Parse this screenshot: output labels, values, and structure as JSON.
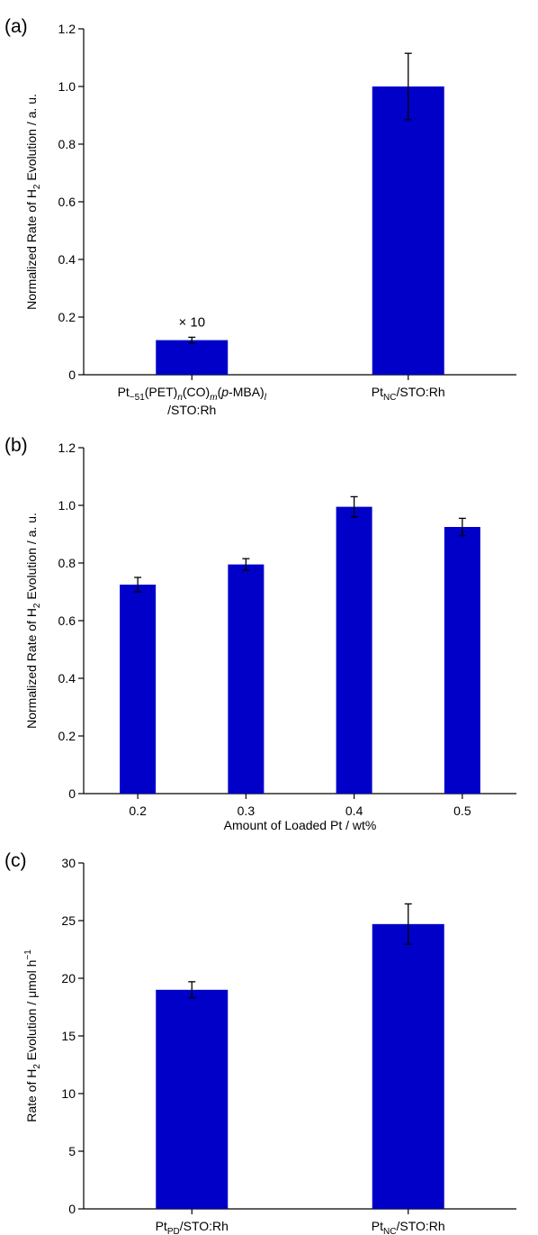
{
  "colors": {
    "bar": "#0000c8",
    "axis": "#000000",
    "text": "#000000",
    "background": "#ffffff"
  },
  "chart_data": [
    {
      "panel": "(a)",
      "type": "bar",
      "categories": [
        {
          "label_line1": [
            [
              "Pt",
              ""
            ],
            [
              "~51",
              "sub"
            ],
            [
              "(PET)",
              ""
            ],
            [
              "n",
              "subi"
            ],
            [
              "(CO)",
              ""
            ],
            [
              "m",
              "subi"
            ],
            [
              "(",
              ""
            ],
            [
              "p",
              "i"
            ],
            [
              "-MBA)",
              ""
            ],
            [
              "l",
              "subi"
            ]
          ],
          "label_line2": "/STO:Rh"
        },
        {
          "label_line1": [
            [
              "Pt",
              ""
            ],
            [
              "NC",
              "sub"
            ],
            [
              "/STO:Rh",
              ""
            ]
          ]
        }
      ],
      "values": [
        0.12,
        1.0
      ],
      "errors": [
        0.01,
        0.115
      ],
      "annotations": [
        {
          "category": 0,
          "text": "× 10"
        }
      ],
      "ylabel": [
        [
          "Normalized Rate of H",
          ""
        ],
        [
          "2",
          "sub"
        ],
        [
          " Evolution / a. u.",
          ""
        ]
      ],
      "xlabel": "",
      "ylim": [
        0,
        1.2
      ],
      "yticks": [
        0,
        0.2,
        0.4,
        0.6,
        0.8,
        1.0,
        1.2
      ],
      "ytick_labels": [
        "0",
        "0.2",
        "0.4",
        "0.6",
        "0.8",
        "1.0",
        "1.2"
      ],
      "grid": false
    },
    {
      "panel": "(b)",
      "type": "bar",
      "categories": [
        {
          "label_line1": [
            [
              "0.2",
              ""
            ]
          ]
        },
        {
          "label_line1": [
            [
              "0.3",
              ""
            ]
          ]
        },
        {
          "label_line1": [
            [
              "0.4",
              ""
            ]
          ]
        },
        {
          "label_line1": [
            [
              "0.5",
              ""
            ]
          ]
        }
      ],
      "values": [
        0.725,
        0.795,
        0.995,
        0.925
      ],
      "errors": [
        0.025,
        0.02,
        0.035,
        0.03
      ],
      "annotations": [],
      "ylabel": [
        [
          "Normalized Rate of H",
          ""
        ],
        [
          "2",
          "sub"
        ],
        [
          " Evolution / a. u.",
          ""
        ]
      ],
      "xlabel": "Amount of Loaded Pt / wt%",
      "ylim": [
        0,
        1.2
      ],
      "yticks": [
        0,
        0.2,
        0.4,
        0.6,
        0.8,
        1.0,
        1.2
      ],
      "ytick_labels": [
        "0",
        "0.2",
        "0.4",
        "0.6",
        "0.8",
        "1.0",
        "1.2"
      ],
      "grid": false
    },
    {
      "panel": "(c)",
      "type": "bar",
      "categories": [
        {
          "label_line1": [
            [
              "Pt",
              ""
            ],
            [
              "PD",
              "sub"
            ],
            [
              "/STO:Rh",
              ""
            ]
          ]
        },
        {
          "label_line1": [
            [
              "Pt",
              ""
            ],
            [
              "NC",
              "sub"
            ],
            [
              "/STO:Rh",
              ""
            ]
          ]
        }
      ],
      "values": [
        19.0,
        24.7
      ],
      "errors": [
        0.7,
        1.75
      ],
      "annotations": [],
      "ylabel": [
        [
          "Rate of H",
          ""
        ],
        [
          "2",
          "sub"
        ],
        [
          " Evolution / μmol h",
          ""
        ],
        [
          "−1",
          "sup"
        ]
      ],
      "xlabel": "",
      "ylim": [
        0,
        30
      ],
      "yticks": [
        0,
        5,
        10,
        15,
        20,
        25,
        30
      ],
      "ytick_labels": [
        "0",
        "5",
        "10",
        "15",
        "20",
        "25",
        "30"
      ],
      "grid": false
    }
  ]
}
